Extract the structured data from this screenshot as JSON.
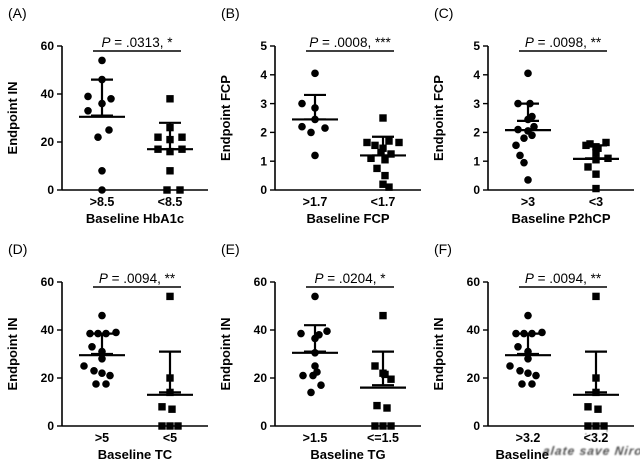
{
  "figure": {
    "background": "#ffffff",
    "ink": "#000000"
  },
  "watermark": {
    "text": "alate save Nirob",
    "dots": "· ··'"
  },
  "chart_data": {
    "type": "scatter",
    "layout": "2 rows x 3 columns, GraphPad-style dot plots with median and error bars, significance underline between groups",
    "panels": [
      {
        "label": "(A)",
        "p_label": {
          "p": "P",
          "value": " = .0313, *"
        },
        "ylabel": "Endpoint IN",
        "xlabel": "Baseline HbA1c",
        "xlabel_obscured": false,
        "ylim": [
          0,
          60
        ],
        "yticks": [
          0,
          20,
          40,
          60
        ],
        "groups": [
          {
            "label": ">8.5",
            "marker": "circle",
            "median": 30.5,
            "err_hi": 46,
            "err_lo": 31,
            "points": [
              [
                0,
                54
              ],
              [
                0,
                46
              ],
              [
                -14,
                39
              ],
              [
                9,
                38
              ],
              [
                0,
                36
              ],
              [
                -14,
                33
              ],
              [
                7,
                25
              ],
              [
                -4,
                22
              ],
              [
                0,
                8
              ],
              [
                0,
                0
              ]
            ]
          },
          {
            "label": "<8.5",
            "marker": "square",
            "median": 17,
            "err_hi": 28,
            "err_lo": 17,
            "points": [
              [
                0,
                38
              ],
              [
                0,
                26
              ],
              [
                -12,
                22
              ],
              [
                12,
                22
              ],
              [
                0,
                21
              ],
              [
                -12,
                17
              ],
              [
                12,
                17
              ],
              [
                0,
                16
              ],
              [
                0,
                8
              ],
              [
                -3,
                0
              ],
              [
                10,
                0
              ]
            ]
          }
        ]
      },
      {
        "label": "(B)",
        "p_label": {
          "p": "P",
          "value": " = .0008, ***"
        },
        "ylabel": "Endpoint FCP",
        "xlabel": "Baseline FCP",
        "xlabel_obscured": false,
        "ylim": [
          0,
          5
        ],
        "yticks": [
          0,
          1,
          2,
          3,
          4,
          5
        ],
        "groups": [
          {
            "label": ">1.7",
            "marker": "circle",
            "median": 2.45,
            "err_hi": 3.3,
            "err_lo": 2.45,
            "points": [
              [
                0,
                4.05
              ],
              [
                -13,
                3.0
              ],
              [
                0,
                2.85
              ],
              [
                0,
                2.45
              ],
              [
                -13,
                2.2
              ],
              [
                10,
                2.15
              ],
              [
                -4,
                2.0
              ],
              [
                0,
                1.2
              ]
            ]
          },
          {
            "label": "<1.7",
            "marker": "square",
            "median": 1.2,
            "err_hi": 1.85,
            "err_lo": 1.2,
            "points": [
              [
                0,
                2.5
              ],
              [
                -16,
                1.65
              ],
              [
                6,
                1.7
              ],
              [
                16,
                1.65
              ],
              [
                -8,
                1.55
              ],
              [
                0,
                1.45
              ],
              [
                -2,
                1.3
              ],
              [
                8,
                1.25
              ],
              [
                -12,
                1.1
              ],
              [
                2,
                1.05
              ],
              [
                -6,
                0.75
              ],
              [
                2,
                0.5
              ],
              [
                0,
                0.2
              ],
              [
                6,
                0.1
              ]
            ]
          }
        ]
      },
      {
        "label": "(C)",
        "p_label": {
          "p": "P",
          "value": " = .0098, **"
        },
        "ylabel": "Endpoint FCP",
        "xlabel": "Baseline P2hCP",
        "xlabel_obscured": false,
        "ylim": [
          0,
          5
        ],
        "yticks": [
          0,
          1,
          2,
          3,
          4,
          5
        ],
        "groups": [
          {
            "label": ">3",
            "marker": "circle",
            "median": 2.08,
            "err_hi": 3.0,
            "err_lo": 2.4,
            "points": [
              [
                0,
                4.05
              ],
              [
                -10,
                3.0
              ],
              [
                2,
                3.0
              ],
              [
                4,
                2.55
              ],
              [
                0,
                2.45
              ],
              [
                6,
                2.2
              ],
              [
                -10,
                2.1
              ],
              [
                0,
                2.05
              ],
              [
                4,
                1.9
              ],
              [
                -4,
                1.8
              ],
              [
                -12,
                1.55
              ],
              [
                -8,
                1.2
              ],
              [
                -4,
                0.95
              ],
              [
                0,
                0.35
              ]
            ]
          },
          {
            "label": "<3",
            "marker": "square",
            "median": 1.08,
            "err_hi": 1.55,
            "err_lo": 1.1,
            "points": [
              [
                10,
                1.65
              ],
              [
                -6,
                1.6
              ],
              [
                -10,
                1.55
              ],
              [
                0,
                1.5
              ],
              [
                2,
                1.45
              ],
              [
                0,
                1.3
              ],
              [
                12,
                1.1
              ],
              [
                0,
                1.05
              ],
              [
                -8,
                0.8
              ],
              [
                0,
                0.55
              ],
              [
                0,
                0.05
              ]
            ]
          }
        ]
      },
      {
        "label": "(D)",
        "p_label": {
          "p": "P",
          "value": " = .0094, **"
        },
        "ylabel": "Endpoint IN",
        "xlabel": "Baseline TC",
        "xlabel_obscured": false,
        "ylim": [
          0,
          60
        ],
        "yticks": [
          0,
          20,
          40,
          60
        ],
        "groups": [
          {
            "label": ">5",
            "marker": "circle",
            "median": 29.5,
            "err_hi": 38.5,
            "err_lo": 30,
            "points": [
              [
                0,
                46
              ],
              [
                14,
                39
              ],
              [
                -12,
                38.5
              ],
              [
                -4,
                38.5
              ],
              [
                4,
                38.5
              ],
              [
                -10,
                33
              ],
              [
                0,
                31
              ],
              [
                0,
                28
              ],
              [
                -18,
                25
              ],
              [
                -8,
                23
              ],
              [
                0,
                22
              ],
              [
                8,
                21
              ],
              [
                -6,
                17.5
              ],
              [
                4,
                17.5
              ]
            ]
          },
          {
            "label": "<5",
            "marker": "square",
            "median": 13,
            "err_hi": 31,
            "err_lo": 14,
            "points": [
              [
                0,
                54
              ],
              [
                0,
                20
              ],
              [
                0,
                14
              ],
              [
                -8,
                8
              ],
              [
                2,
                7
              ],
              [
                -8,
                0
              ],
              [
                0,
                0
              ],
              [
                8,
                0
              ]
            ]
          }
        ]
      },
      {
        "label": "(E)",
        "p_label": {
          "p": "P",
          "value": " = .0204, *"
        },
        "ylabel": "Endpoint IN",
        "xlabel": "Baseline TG",
        "xlabel_obscured": false,
        "ylim": [
          0,
          60
        ],
        "yticks": [
          0,
          20,
          40,
          60
        ],
        "groups": [
          {
            "label": ">1.5",
            "marker": "circle",
            "median": 30.5,
            "err_hi": 42,
            "err_lo": 31,
            "points": [
              [
                0,
                54
              ],
              [
                12,
                39.5
              ],
              [
                -14,
                38.5
              ],
              [
                4,
                38
              ],
              [
                0,
                36.5
              ],
              [
                0,
                30.5
              ],
              [
                0,
                25
              ],
              [
                2,
                22.5
              ],
              [
                -12,
                21
              ],
              [
                -2,
                21
              ],
              [
                6,
                17
              ],
              [
                -4,
                14
              ]
            ]
          },
          {
            "label": "<=1.5",
            "marker": "square",
            "median": 16,
            "err_hi": 31,
            "err_lo": 17,
            "points": [
              [
                0,
                46
              ],
              [
                -8,
                25
              ],
              [
                0,
                22
              ],
              [
                2,
                21.5
              ],
              [
                8,
                19.5
              ],
              [
                -6,
                8.5
              ],
              [
                4,
                7.5
              ],
              [
                -8,
                0
              ],
              [
                0,
                0
              ],
              [
                8,
                0
              ]
            ]
          }
        ]
      },
      {
        "label": "(F)",
        "p_label": {
          "p": "P",
          "value": " = .0094, **"
        },
        "ylabel": "Endpoint IN",
        "xlabel": "Baseline",
        "xlabel_obscured": true,
        "ylim": [
          0,
          60
        ],
        "yticks": [
          0,
          20,
          40,
          60
        ],
        "groups": [
          {
            "label": ">3.2",
            "marker": "circle",
            "median": 29.5,
            "err_hi": 38.5,
            "err_lo": 30,
            "points": [
              [
                0,
                46
              ],
              [
                14,
                39
              ],
              [
                -12,
                38.5
              ],
              [
                -4,
                38.5
              ],
              [
                4,
                38.5
              ],
              [
                -10,
                33
              ],
              [
                0,
                31
              ],
              [
                0,
                28
              ],
              [
                -18,
                25
              ],
              [
                -8,
                23
              ],
              [
                0,
                22
              ],
              [
                8,
                21
              ],
              [
                -6,
                17.5
              ],
              [
                4,
                17.5
              ]
            ]
          },
          {
            "label": "<3.2",
            "marker": "square",
            "median": 13,
            "err_hi": 31,
            "err_lo": 14,
            "points": [
              [
                0,
                54
              ],
              [
                0,
                20
              ],
              [
                0,
                14
              ],
              [
                -8,
                8
              ],
              [
                2,
                7
              ],
              [
                -8,
                0
              ],
              [
                0,
                0
              ],
              [
                8,
                0
              ]
            ]
          }
        ]
      }
    ]
  }
}
